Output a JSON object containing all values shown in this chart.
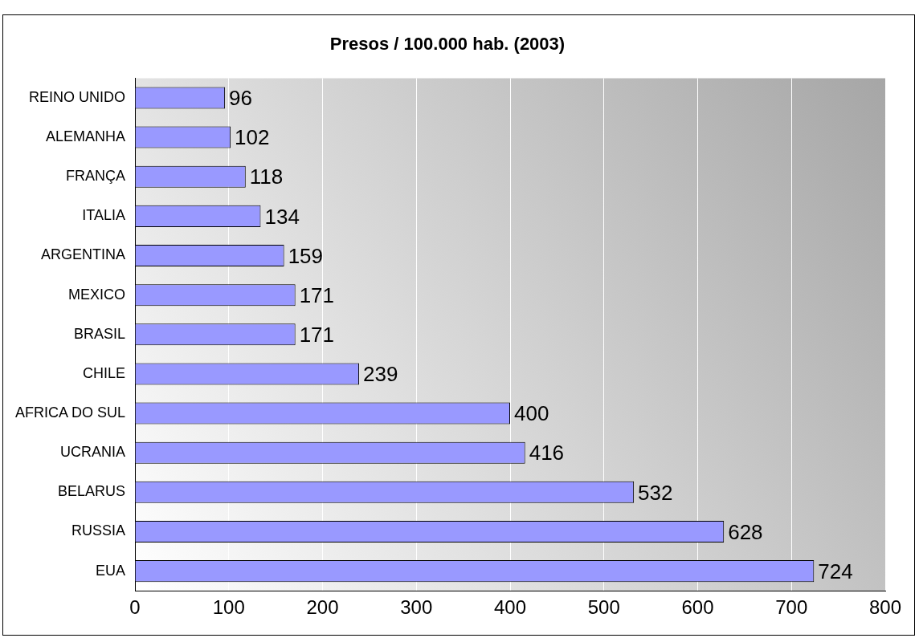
{
  "chart_data": {
    "type": "bar",
    "orientation": "horizontal",
    "title": "Presos / 100.000 hab. (2003)",
    "categories": [
      "REINO UNIDO",
      "ALEMANHA",
      "FRANÇA",
      "ITALIA",
      "ARGENTINA",
      "MEXICO",
      "BRASIL",
      "CHILE",
      "AFRICA DO SUL",
      "UCRANIA",
      "BELARUS",
      "RUSSIA",
      "EUA"
    ],
    "values": [
      96,
      102,
      118,
      134,
      159,
      171,
      171,
      239,
      400,
      416,
      532,
      628,
      724
    ],
    "color": "#9999ff",
    "xlim": [
      0,
      800
    ],
    "xticks": [
      0,
      100,
      200,
      300,
      400,
      500,
      600,
      700,
      800
    ],
    "grid": "x",
    "legend": false,
    "data_labels": true
  }
}
